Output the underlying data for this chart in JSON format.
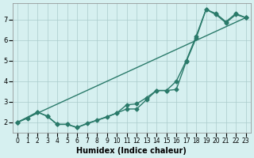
{
  "xlabel": "Humidex (Indice chaleur)",
  "bg_color": "#d6f0f0",
  "grid_color": "#aacccc",
  "line_color": "#2a7a6a",
  "xlim": [
    -0.5,
    23.5
  ],
  "ylim": [
    1.5,
    7.8
  ],
  "yticks": [
    2,
    3,
    4,
    5,
    6,
    7
  ],
  "xticks": [
    0,
    1,
    2,
    3,
    4,
    5,
    6,
    7,
    8,
    9,
    10,
    11,
    12,
    13,
    14,
    15,
    16,
    17,
    18,
    19,
    20,
    21,
    22,
    23
  ],
  "line1_x": [
    0,
    1,
    2,
    3,
    4,
    5,
    6,
    7,
    8,
    9,
    10,
    11,
    12,
    13,
    14,
    15,
    16,
    17,
    18,
    19,
    20,
    21,
    22,
    23
  ],
  "line1_y": [
    2.0,
    2.2,
    2.5,
    2.3,
    1.9,
    1.9,
    1.75,
    1.95,
    2.1,
    2.25,
    2.45,
    2.65,
    2.65,
    3.1,
    3.55,
    3.55,
    3.6,
    4.95,
    6.1,
    7.5,
    7.25,
    6.85,
    7.25,
    7.1
  ],
  "line2_x": [
    0,
    2,
    3,
    4,
    5,
    6,
    10,
    11,
    12,
    13,
    14,
    15,
    16,
    17,
    18,
    19,
    20,
    21,
    22,
    23
  ],
  "line2_y": [
    2.0,
    2.5,
    2.3,
    1.9,
    1.9,
    1.75,
    2.45,
    2.85,
    2.9,
    3.2,
    3.55,
    3.55,
    4.0,
    5.0,
    6.2,
    7.5,
    7.3,
    6.9,
    7.3,
    7.1
  ],
  "line3_x": [
    0,
    23
  ],
  "line3_y": [
    2.0,
    7.1
  ]
}
